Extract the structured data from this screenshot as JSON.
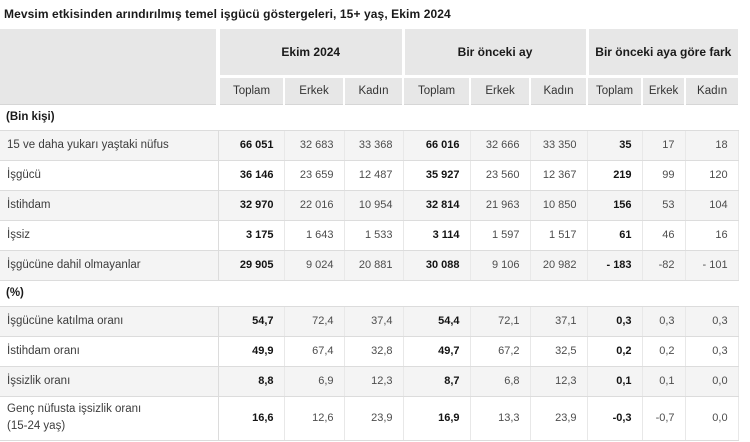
{
  "title": "Mevsim etkisinden arındırılmış temel işgücü göstergeleri, 15+ yaş, Ekim 2024",
  "colors": {
    "header_bg": "#e7e7e7",
    "row_stripe_bg": "#f4f4f4",
    "border": "#dcdcdc",
    "title_text": "#1a1a1a",
    "number_text": "#4d4d4d"
  },
  "chart_data": {
    "type": "table",
    "title": "Mevsim etkisinden arındırılmış temel işgücü göstergeleri, 15+ yaş, Ekim 2024",
    "column_groups": [
      {
        "label": "Ekim 2024",
        "columns": [
          "Toplam",
          "Erkek",
          "Kadın"
        ]
      },
      {
        "label": "Bir önceki ay",
        "columns": [
          "Toplam",
          "Erkek",
          "Kadın"
        ]
      },
      {
        "label": "Bir önceki aya göre fark",
        "columns": [
          "Toplam",
          "Erkek",
          "Kadın"
        ]
      }
    ],
    "sections": [
      {
        "header": "(Bin kişi)",
        "rows": [
          {
            "label": "15 ve daha yukarı yaştaki nüfus",
            "values": [
              "66 051",
              "32 683",
              "33 368",
              "66 016",
              "32 666",
              "33 350",
              "35",
              "17",
              "18"
            ]
          },
          {
            "label": "İşgücü",
            "values": [
              "36 146",
              "23 659",
              "12 487",
              "35 927",
              "23 560",
              "12 367",
              "219",
              "99",
              "120"
            ]
          },
          {
            "label": "İstihdam",
            "values": [
              "32 970",
              "22 016",
              "10 954",
              "32 814",
              "21 963",
              "10 850",
              "156",
              "53",
              "104"
            ]
          },
          {
            "label": "İşsiz",
            "values": [
              "3 175",
              "1 643",
              "1 533",
              "3 114",
              "1 597",
              "1 517",
              "61",
              "46",
              "16"
            ]
          },
          {
            "label": "İşgücüne dahil olmayanlar",
            "values": [
              "29 905",
              "9 024",
              "20 881",
              "30 088",
              "9 106",
              "20 982",
              "- 183",
              "-82",
              "- 101"
            ]
          }
        ]
      },
      {
        "header": "(%)",
        "rows": [
          {
            "label": "İşgücüne katılma oranı",
            "values": [
              "54,7",
              "72,4",
              "37,4",
              "54,4",
              "72,1",
              "37,1",
              "0,3",
              "0,3",
              "0,3"
            ]
          },
          {
            "label": "İstihdam oranı",
            "values": [
              "49,9",
              "67,4",
              "32,8",
              "49,7",
              "67,2",
              "32,5",
              "0,2",
              "0,2",
              "0,3"
            ]
          },
          {
            "label": "İşsizlik oranı",
            "values": [
              "8,8",
              "6,9",
              "12,3",
              "8,7",
              "6,8",
              "12,3",
              "0,1",
              "0,1",
              "0,0"
            ]
          },
          {
            "label": "Genç nüfusta işsizlik oranı",
            "label_line2": "(15-24 yaş)",
            "tall": true,
            "values": [
              "16,6",
              "12,6",
              "23,9",
              "16,9",
              "13,3",
              "23,9",
              "-0,3",
              "-0,7",
              "0,0"
            ]
          }
        ]
      }
    ]
  }
}
